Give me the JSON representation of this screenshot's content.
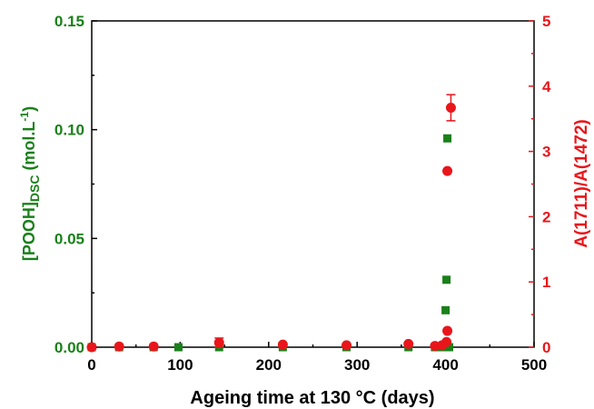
{
  "chart_data": {
    "type": "scatter",
    "xlabel": "Ageing time at 130 °C (days)",
    "ylabel_left_main": "[POOH]",
    "ylabel_left_sub": "DSC",
    "ylabel_left_unit": " (mol.L",
    "ylabel_left_sup": "-1",
    "ylabel_left_close": ")",
    "ylabel_right": "A(1711)/A(1472)",
    "xlim": [
      0,
      500
    ],
    "ylim_left": [
      0,
      0.15
    ],
    "ylim_right": [
      0,
      5
    ],
    "x_ticks": [
      "0",
      "100",
      "200",
      "300",
      "400",
      "500"
    ],
    "y_left_ticks": [
      "0.00",
      "0.05",
      "0.10",
      "0.15"
    ],
    "y_right_ticks": [
      "0",
      "1",
      "2",
      "3",
      "4",
      "5"
    ],
    "colors": {
      "left_axis": "#1a801a",
      "right_axis": "#e8161b",
      "axes": "#000000"
    },
    "series": [
      {
        "axis": "left",
        "marker": "square",
        "color": "#1a801a",
        "points": [
          [
            0,
            0.0
          ],
          [
            31,
            0.0
          ],
          [
            70,
            0.0
          ],
          [
            98,
            0.0
          ],
          [
            144,
            0.0
          ],
          [
            216,
            0.0
          ],
          [
            288,
            0.0
          ],
          [
            358,
            0.0
          ],
          [
            388,
            0.0
          ],
          [
            396,
            0.0
          ],
          [
            400,
            0.017
          ],
          [
            401,
            0.031
          ],
          [
            402,
            0.096
          ],
          [
            404,
            0.0
          ]
        ]
      },
      {
        "axis": "right",
        "marker": "circle",
        "color": "#e8161b",
        "points": [
          [
            0,
            0.0,
            0
          ],
          [
            31,
            0.01,
            0
          ],
          [
            70,
            0.01,
            0
          ],
          [
            144,
            0.07,
            0.07
          ],
          [
            216,
            0.04,
            0
          ],
          [
            288,
            0.03,
            0
          ],
          [
            358,
            0.05,
            0
          ],
          [
            388,
            0.02,
            0
          ],
          [
            396,
            0.03,
            0
          ],
          [
            401,
            0.08,
            0
          ],
          [
            402,
            0.25,
            0
          ],
          [
            402,
            2.7,
            0
          ],
          [
            406,
            3.67,
            0.2
          ]
        ]
      }
    ]
  }
}
